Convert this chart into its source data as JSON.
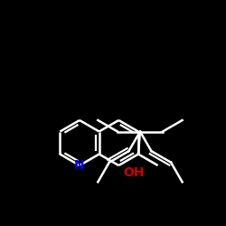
{
  "background_color": "#000000",
  "line_color": "#ffffff",
  "N_color": "#0000ff",
  "O_color": "#cc0000",
  "line_width": 1.8,
  "font_size_N": 11,
  "font_size_OH": 11
}
